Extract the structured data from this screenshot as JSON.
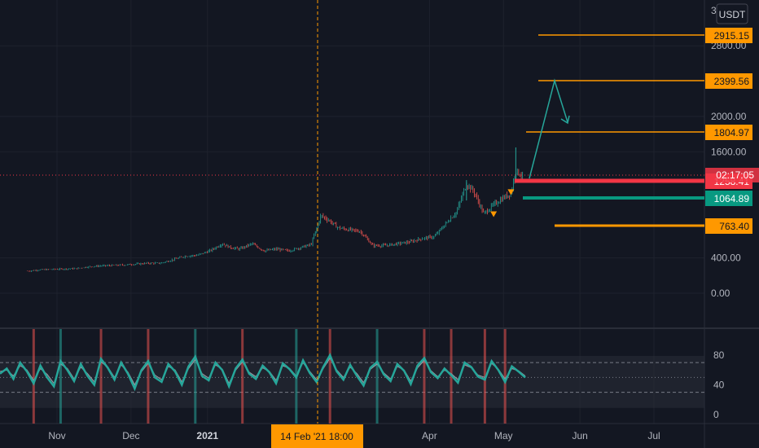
{
  "chart_data": [
    {
      "type": "line",
      "pane": "price",
      "currency": "USDT",
      "countdown": "02:17:05",
      "ylim": [
        -80,
        3000
      ],
      "y_ticks": [
        {
          "value": 0,
          "label": "0.00"
        },
        {
          "value": 400,
          "label": "400.00"
        },
        {
          "value": 1600,
          "label": "1600.00"
        },
        {
          "value": 2000,
          "label": "2000.00"
        },
        {
          "value": 2800,
          "label": "2800.00"
        }
      ],
      "x_ticks": [
        {
          "date": "2020-11-01",
          "label": "Nov"
        },
        {
          "date": "2020-12-01",
          "label": "Dec"
        },
        {
          "date": "2021-01-01",
          "label": "2021"
        },
        {
          "date": "2021-04-01",
          "label": "Apr"
        },
        {
          "date": "2021-05-01",
          "label": "May"
        },
        {
          "date": "2021-06-01",
          "label": "Jun"
        },
        {
          "date": "2021-07-01",
          "label": "Jul"
        }
      ],
      "crosshair": {
        "date": "2021-02-14",
        "label": "14 Feb '21  18:00"
      },
      "series": [
        {
          "x": [
            "2020-10-20",
            "2020-10-25",
            "2020-10-30",
            "2020-11-04",
            "2020-11-09",
            "2020-11-14",
            "2020-11-19",
            "2020-11-24",
            "2020-11-28",
            "2020-12-03",
            "2020-12-08",
            "2020-12-13",
            "2020-12-18",
            "2020-12-23",
            "2020-12-28",
            "2021-01-02",
            "2021-01-07",
            "2021-01-10",
            "2021-01-14",
            "2021-01-19",
            "2021-01-24",
            "2021-01-29",
            "2021-02-03",
            "2021-02-08",
            "2021-02-12",
            "2021-02-16",
            "2021-02-19",
            "2021-02-23",
            "2021-02-27",
            "2021-03-04",
            "2021-03-09",
            "2021-03-14",
            "2021-03-19",
            "2021-03-24",
            "2021-03-29",
            "2021-04-03",
            "2021-04-08",
            "2021-04-12",
            "2021-04-16",
            "2021-04-19",
            "2021-04-23",
            "2021-04-27",
            "2021-05-01",
            "2021-05-04",
            "2021-05-06",
            "2021-05-08",
            "2021-05-09"
          ],
          "values": [
            250,
            265,
            270,
            275,
            280,
            300,
            310,
            315,
            320,
            330,
            340,
            340,
            380,
            420,
            430,
            480,
            560,
            520,
            500,
            560,
            480,
            500,
            480,
            520,
            550,
            880,
            830,
            740,
            720,
            700,
            540,
            540,
            560,
            580,
            620,
            640,
            800,
            920,
            1240,
            1150,
            900,
            1000,
            1080,
            1130,
            1390,
            1340,
            1300
          ]
        }
      ],
      "levels": [
        {
          "value": 2915.15,
          "label": "2915.15",
          "color": "#ff9800"
        },
        {
          "value": 2399.56,
          "label": "2399.56",
          "color": "#ff9800"
        },
        {
          "value": 1804.97,
          "label": "1804.97",
          "color": "#ff9800"
        },
        {
          "value": 1258.41,
          "label": "1258.41",
          "color": "#f23645"
        },
        {
          "value": 1064.89,
          "label": "1064.89",
          "color": "#089981"
        },
        {
          "value": 763.4,
          "label": "763.40",
          "color": "#ff9800"
        }
      ],
      "projection": {
        "color": "#26a69a",
        "points": [
          {
            "date": "2021-05-09",
            "value": 1290
          },
          {
            "date": "2021-05-25",
            "value": 2399.56
          },
          {
            "date": "2021-06-01",
            "value": 1890
          }
        ]
      },
      "colors": {
        "up": "#26a69a",
        "down": "#ef5350"
      }
    },
    {
      "type": "line",
      "pane": "oscillator",
      "ylim": [
        -5,
        105
      ],
      "y_ticks": [
        {
          "value": 0,
          "label": "0"
        },
        {
          "value": 40,
          "label": "40"
        },
        {
          "value": 80,
          "label": "80"
        }
      ],
      "bands": [
        30,
        50,
        70
      ],
      "series": [
        {
          "name": "",
          "color": "#26a69a",
          "values": [
            55,
            62,
            48,
            70,
            58,
            42,
            66,
            50,
            38,
            72,
            60,
            45,
            68,
            52,
            40,
            75,
            63,
            47,
            70,
            55,
            35,
            60,
            72,
            50,
            44,
            68,
            58,
            40,
            65,
            78,
            52,
            46,
            70,
            60,
            38,
            62,
            74,
            55,
            48,
            66,
            57,
            42,
            69,
            61,
            50,
            73,
            56,
            44,
            64,
            80,
            58,
            47,
            67,
            52,
            39,
            63,
            71,
            54,
            45,
            68,
            59,
            41,
            66,
            76,
            57,
            49,
            62,
            53,
            43,
            70,
            64,
            51,
            47,
            72,
            60,
            44,
            65,
            58,
            50
          ]
        },
        {
          "name": "",
          "color": "#9598a1",
          "values": [
            58,
            60,
            52,
            66,
            60,
            46,
            62,
            54,
            42,
            68,
            62,
            48,
            64,
            55,
            44,
            71,
            64,
            50,
            67,
            57,
            40,
            58,
            69,
            53,
            47,
            65,
            60,
            44,
            62,
            74,
            55,
            49,
            67,
            61,
            42,
            60,
            71,
            57,
            51,
            63,
            58,
            46,
            66,
            62,
            52,
            70,
            58,
            47,
            62,
            76,
            60,
            50,
            64,
            55,
            43,
            61,
            68,
            56,
            48,
            65,
            60,
            45,
            63,
            73,
            59,
            51,
            60,
            55,
            47,
            67,
            63,
            53,
            50,
            69,
            61,
            48,
            62,
            59,
            52
          ]
        }
      ],
      "bg_bars": [
        {
          "i": 5,
          "color": "#ef5350"
        },
        {
          "i": 9,
          "color": "#26a69a"
        },
        {
          "i": 15,
          "color": "#ef5350"
        },
        {
          "i": 22,
          "color": "#ef5350"
        },
        {
          "i": 29,
          "color": "#26a69a"
        },
        {
          "i": 36,
          "color": "#ef5350"
        },
        {
          "i": 44,
          "color": "#26a69a"
        },
        {
          "i": 49,
          "color": "#ef5350"
        },
        {
          "i": 56,
          "color": "#26a69a"
        },
        {
          "i": 63,
          "color": "#ef5350"
        },
        {
          "i": 67,
          "color": "#ef5350"
        },
        {
          "i": 72,
          "color": "#ef5350"
        },
        {
          "i": 75,
          "color": "#ef5350"
        }
      ]
    }
  ]
}
